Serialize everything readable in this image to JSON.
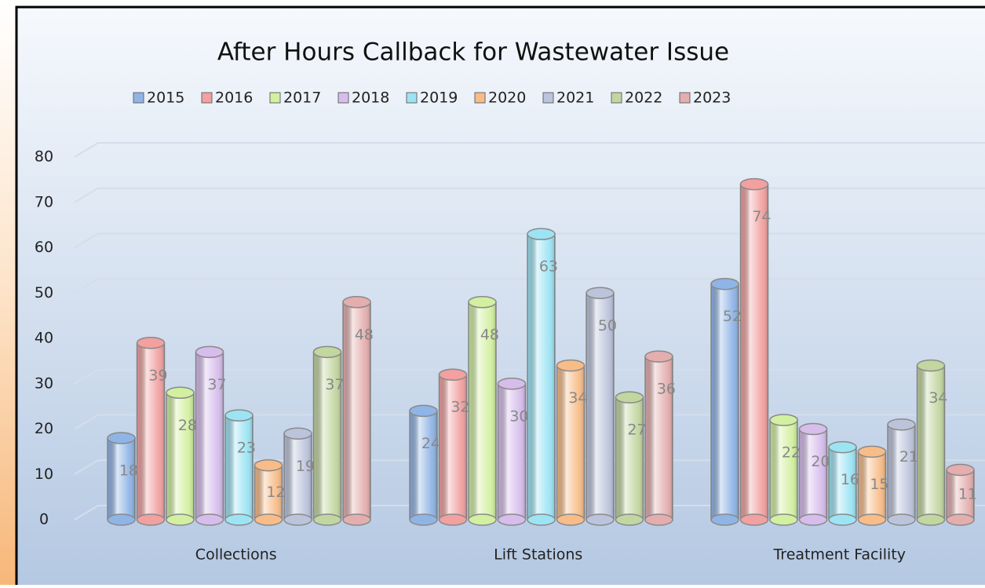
{
  "chart_data": {
    "type": "bar3d",
    "title": "After Hours Callback for Wastewater Issue",
    "categories": [
      "Collections",
      "Lift Stations",
      "Treatment Facility"
    ],
    "series": [
      {
        "name": "2015",
        "color": "#8fb4e6",
        "values": [
          18,
          24,
          52
        ]
      },
      {
        "name": "2016",
        "color": "#f2a0a0",
        "values": [
          39,
          32,
          74
        ]
      },
      {
        "name": "2017",
        "color": "#d2f0a0",
        "values": [
          28,
          48,
          22
        ]
      },
      {
        "name": "2018",
        "color": "#d6bdec",
        "values": [
          37,
          30,
          20
        ]
      },
      {
        "name": "2019",
        "color": "#9ce4f4",
        "values": [
          23,
          63,
          16
        ]
      },
      {
        "name": "2020",
        "color": "#f8bc88",
        "values": [
          12,
          34,
          15
        ]
      },
      {
        "name": "2021",
        "color": "#bcc4dc",
        "values": [
          19,
          50,
          21
        ]
      },
      {
        "name": "2022",
        "color": "#c2d6a0",
        "values": [
          37,
          27,
          34
        ]
      },
      {
        "name": "2023",
        "color": "#e4aeae",
        "values": [
          48,
          36,
          11
        ]
      }
    ],
    "ylim": [
      0,
      80
    ],
    "yticks": [
      0,
      10,
      20,
      30,
      40,
      50,
      60,
      70,
      80
    ],
    "grid": true,
    "legend": "top"
  }
}
